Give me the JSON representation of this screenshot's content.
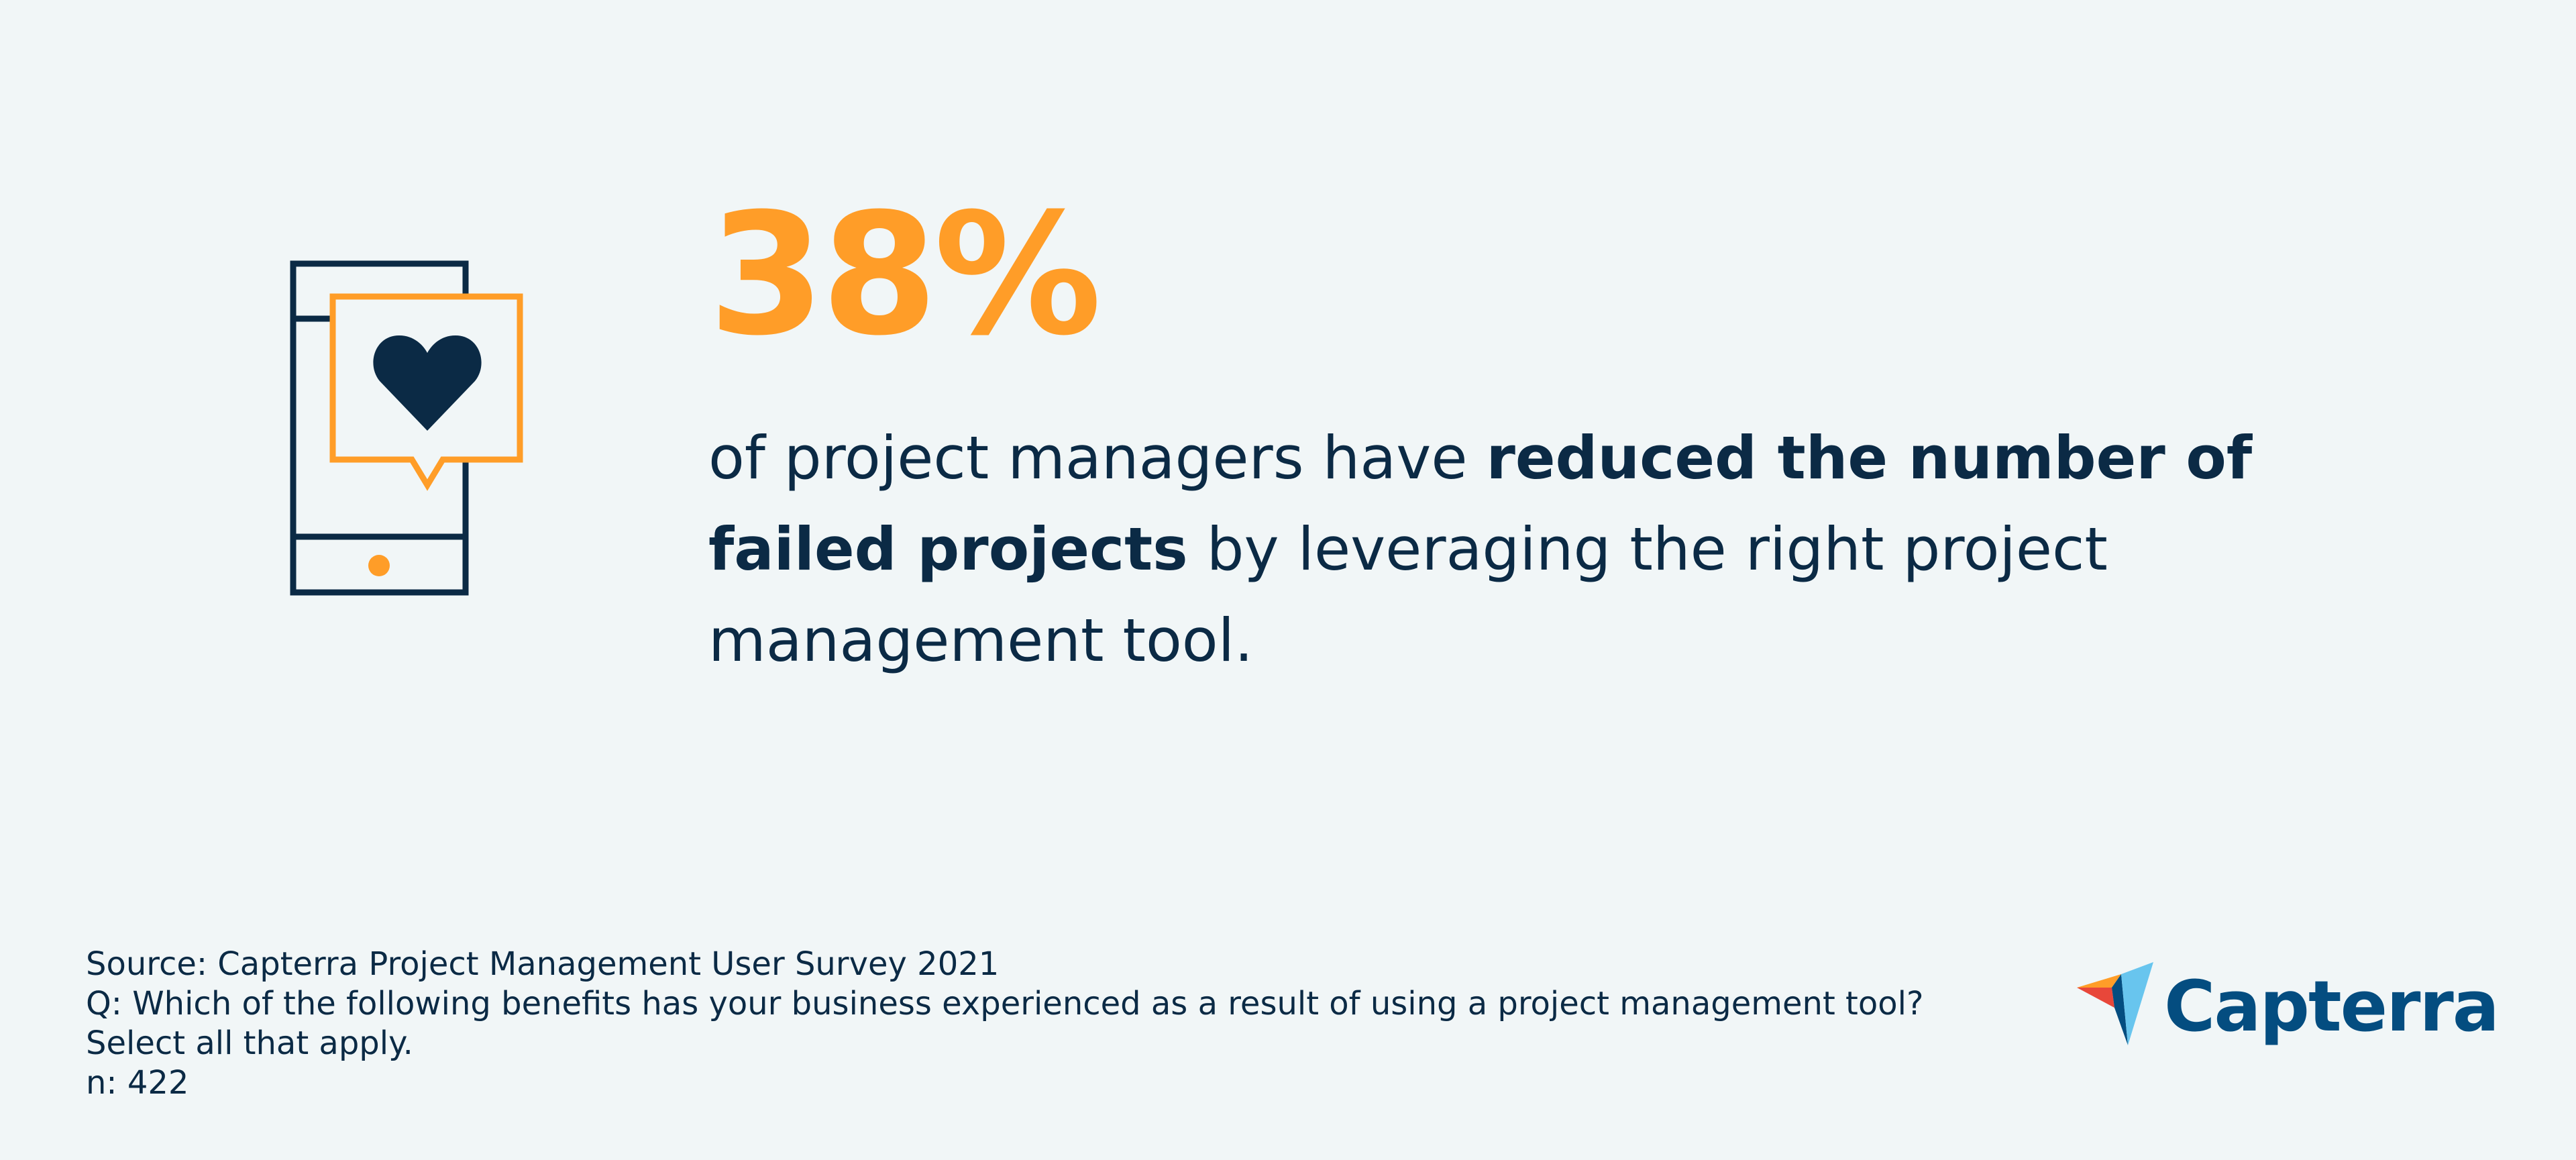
{
  "stat": {
    "value": "38%",
    "text_before": "of project managers have ",
    "text_bold": "reduced the number of failed projects",
    "text_after": " by leveraging the right project management tool."
  },
  "footer": {
    "source": "Source: Capterra Project Management User Survey 2021",
    "question": "Q: Which of the following benefits has your business experienced as a result of using a project management tool?",
    "instruction": "Select all that apply.",
    "sample": "n: 422"
  },
  "brand": {
    "name": "Capterra",
    "logo_icon": "capterra-arrow-logo"
  },
  "icons": {
    "illustration": "phone-heart-icon"
  },
  "colors": {
    "background": "#f1f6f7",
    "accent_orange": "#ff9d28",
    "text_navy": "#0b2a45",
    "brand_blue": "#044d80"
  }
}
